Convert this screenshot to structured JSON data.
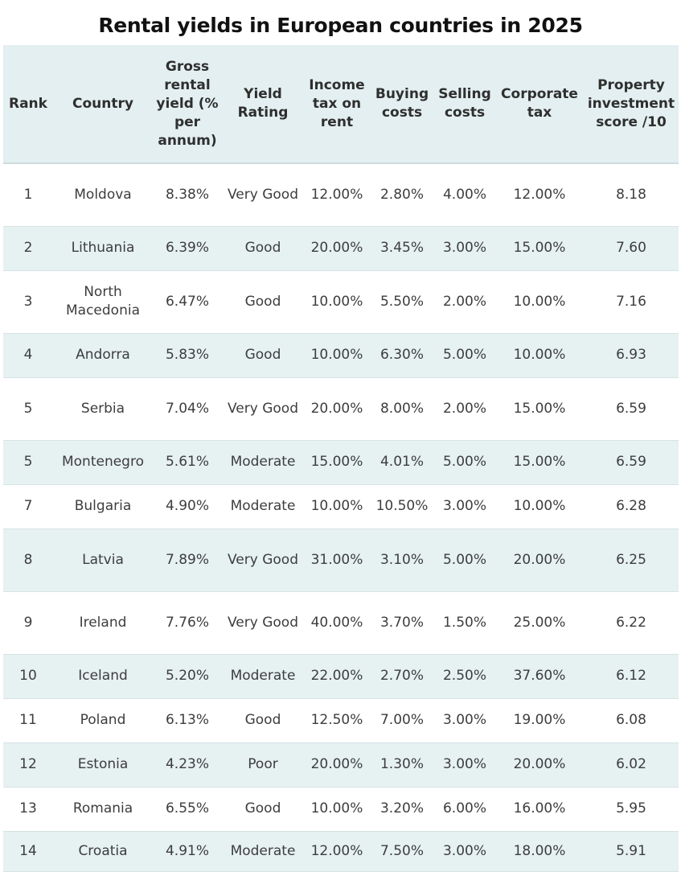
{
  "title": "Rental yields in European countries in 2025",
  "columns": [
    "Rank",
    "Country",
    "Gross rental yield (% per annum)",
    "Yield Rating",
    "Income tax on rent",
    "Buying costs",
    "Selling costs",
    "Corporate tax",
    "Property investment score /10"
  ],
  "rows": [
    {
      "rank": "1",
      "country": "Moldova",
      "yield": "8.38%",
      "rating": "Very Good",
      "income_tax": "12.00%",
      "buying": "2.80%",
      "selling": "4.00%",
      "corporate": "12.00%",
      "score": "8.18"
    },
    {
      "rank": "2",
      "country": "Lithuania",
      "yield": "6.39%",
      "rating": "Good",
      "income_tax": "20.00%",
      "buying": "3.45%",
      "selling": "3.00%",
      "corporate": "15.00%",
      "score": "7.60"
    },
    {
      "rank": "3",
      "country": "North Macedonia",
      "yield": "6.47%",
      "rating": "Good",
      "income_tax": "10.00%",
      "buying": "5.50%",
      "selling": "2.00%",
      "corporate": "10.00%",
      "score": "7.16"
    },
    {
      "rank": "4",
      "country": "Andorra",
      "yield": "5.83%",
      "rating": "Good",
      "income_tax": "10.00%",
      "buying": "6.30%",
      "selling": "5.00%",
      "corporate": "10.00%",
      "score": "6.93"
    },
    {
      "rank": "5",
      "country": "Serbia",
      "yield": "7.04%",
      "rating": "Very Good",
      "income_tax": "20.00%",
      "buying": "8.00%",
      "selling": "2.00%",
      "corporate": "15.00%",
      "score": "6.59"
    },
    {
      "rank": "5",
      "country": "Montenegro",
      "yield": "5.61%",
      "rating": "Moderate",
      "income_tax": "15.00%",
      "buying": "4.01%",
      "selling": "5.00%",
      "corporate": "15.00%",
      "score": "6.59"
    },
    {
      "rank": "7",
      "country": "Bulgaria",
      "yield": "4.90%",
      "rating": "Moderate",
      "income_tax": "10.00%",
      "buying": "10.50%",
      "selling": "3.00%",
      "corporate": "10.00%",
      "score": "6.28"
    },
    {
      "rank": "8",
      "country": "Latvia",
      "yield": "7.89%",
      "rating": "Very Good",
      "income_tax": "31.00%",
      "buying": "3.10%",
      "selling": "5.00%",
      "corporate": "20.00%",
      "score": "6.25"
    },
    {
      "rank": "9",
      "country": "Ireland",
      "yield": "7.76%",
      "rating": "Very Good",
      "income_tax": "40.00%",
      "buying": "3.70%",
      "selling": "1.50%",
      "corporate": "25.00%",
      "score": "6.22"
    },
    {
      "rank": "10",
      "country": "Iceland",
      "yield": "5.20%",
      "rating": "Moderate",
      "income_tax": "22.00%",
      "buying": "2.70%",
      "selling": "2.50%",
      "corporate": "37.60%",
      "score": "6.12"
    },
    {
      "rank": "11",
      "country": "Poland",
      "yield": "6.13%",
      "rating": "Good",
      "income_tax": "12.50%",
      "buying": "7.00%",
      "selling": "3.00%",
      "corporate": "19.00%",
      "score": "6.08"
    },
    {
      "rank": "12",
      "country": "Estonia",
      "yield": "4.23%",
      "rating": "Poor",
      "income_tax": "20.00%",
      "buying": "1.30%",
      "selling": "3.00%",
      "corporate": "20.00%",
      "score": "6.02"
    },
    {
      "rank": "13",
      "country": "Romania",
      "yield": "6.55%",
      "rating": "Good",
      "income_tax": "10.00%",
      "buying": "3.20%",
      "selling": "6.00%",
      "corporate": "16.00%",
      "score": "5.95"
    },
    {
      "rank": "14",
      "country": "Croatia",
      "yield": "4.91%",
      "rating": "Moderate",
      "income_tax": "12.00%",
      "buying": "7.50%",
      "selling": "3.00%",
      "corporate": "18.00%",
      "score": "5.91"
    }
  ]
}
